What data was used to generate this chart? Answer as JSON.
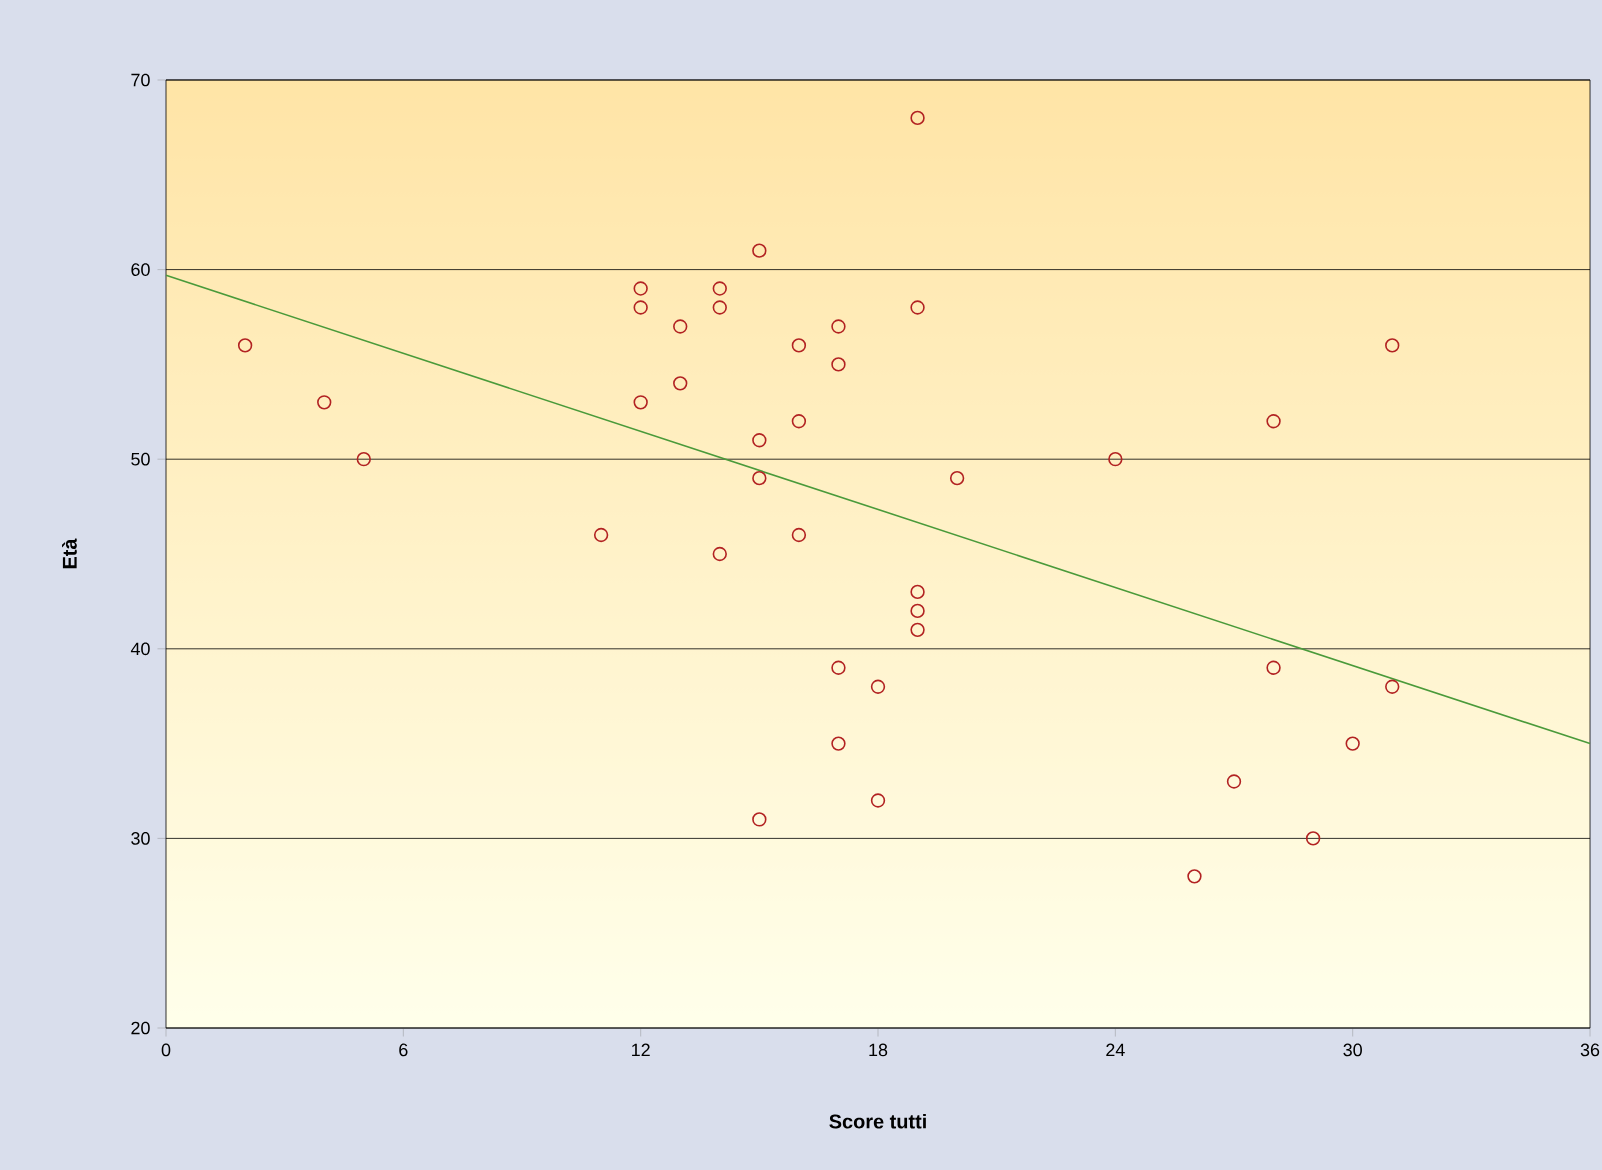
{
  "chart_data": {
    "type": "scatter",
    "xlabel": "Score tutti",
    "ylabel": "Età",
    "xlim": [
      0,
      36
    ],
    "ylim": [
      20,
      70
    ],
    "xticks": [
      0,
      6,
      12,
      18,
      24,
      30,
      36
    ],
    "yticks": [
      20,
      30,
      40,
      50,
      60,
      70
    ],
    "grid": "y",
    "series": [
      {
        "marker": "circle",
        "color": "#b22222",
        "x": [
          2,
          4,
          5,
          11,
          12,
          12,
          12,
          13,
          13,
          14,
          14,
          14,
          15,
          15,
          15,
          15,
          16,
          16,
          16,
          17,
          17,
          17,
          17,
          18,
          18,
          19,
          19,
          19,
          19,
          19,
          20,
          24,
          26,
          27,
          28,
          28,
          29,
          30,
          31,
          31
        ],
        "values": [
          56,
          53,
          50,
          46,
          59,
          58,
          53,
          57,
          54,
          59,
          58,
          45,
          61,
          51,
          49,
          31,
          56,
          52,
          46,
          57,
          55,
          39,
          35,
          38,
          32,
          68,
          58,
          43,
          42,
          41,
          49,
          50,
          28,
          33,
          52,
          39,
          30,
          35,
          56,
          38
        ]
      },
      {
        "type": "line",
        "marker": "none",
        "color": "#4a9a3a",
        "x": [
          0,
          36
        ],
        "values": [
          59.7,
          35.0
        ]
      }
    ]
  }
}
